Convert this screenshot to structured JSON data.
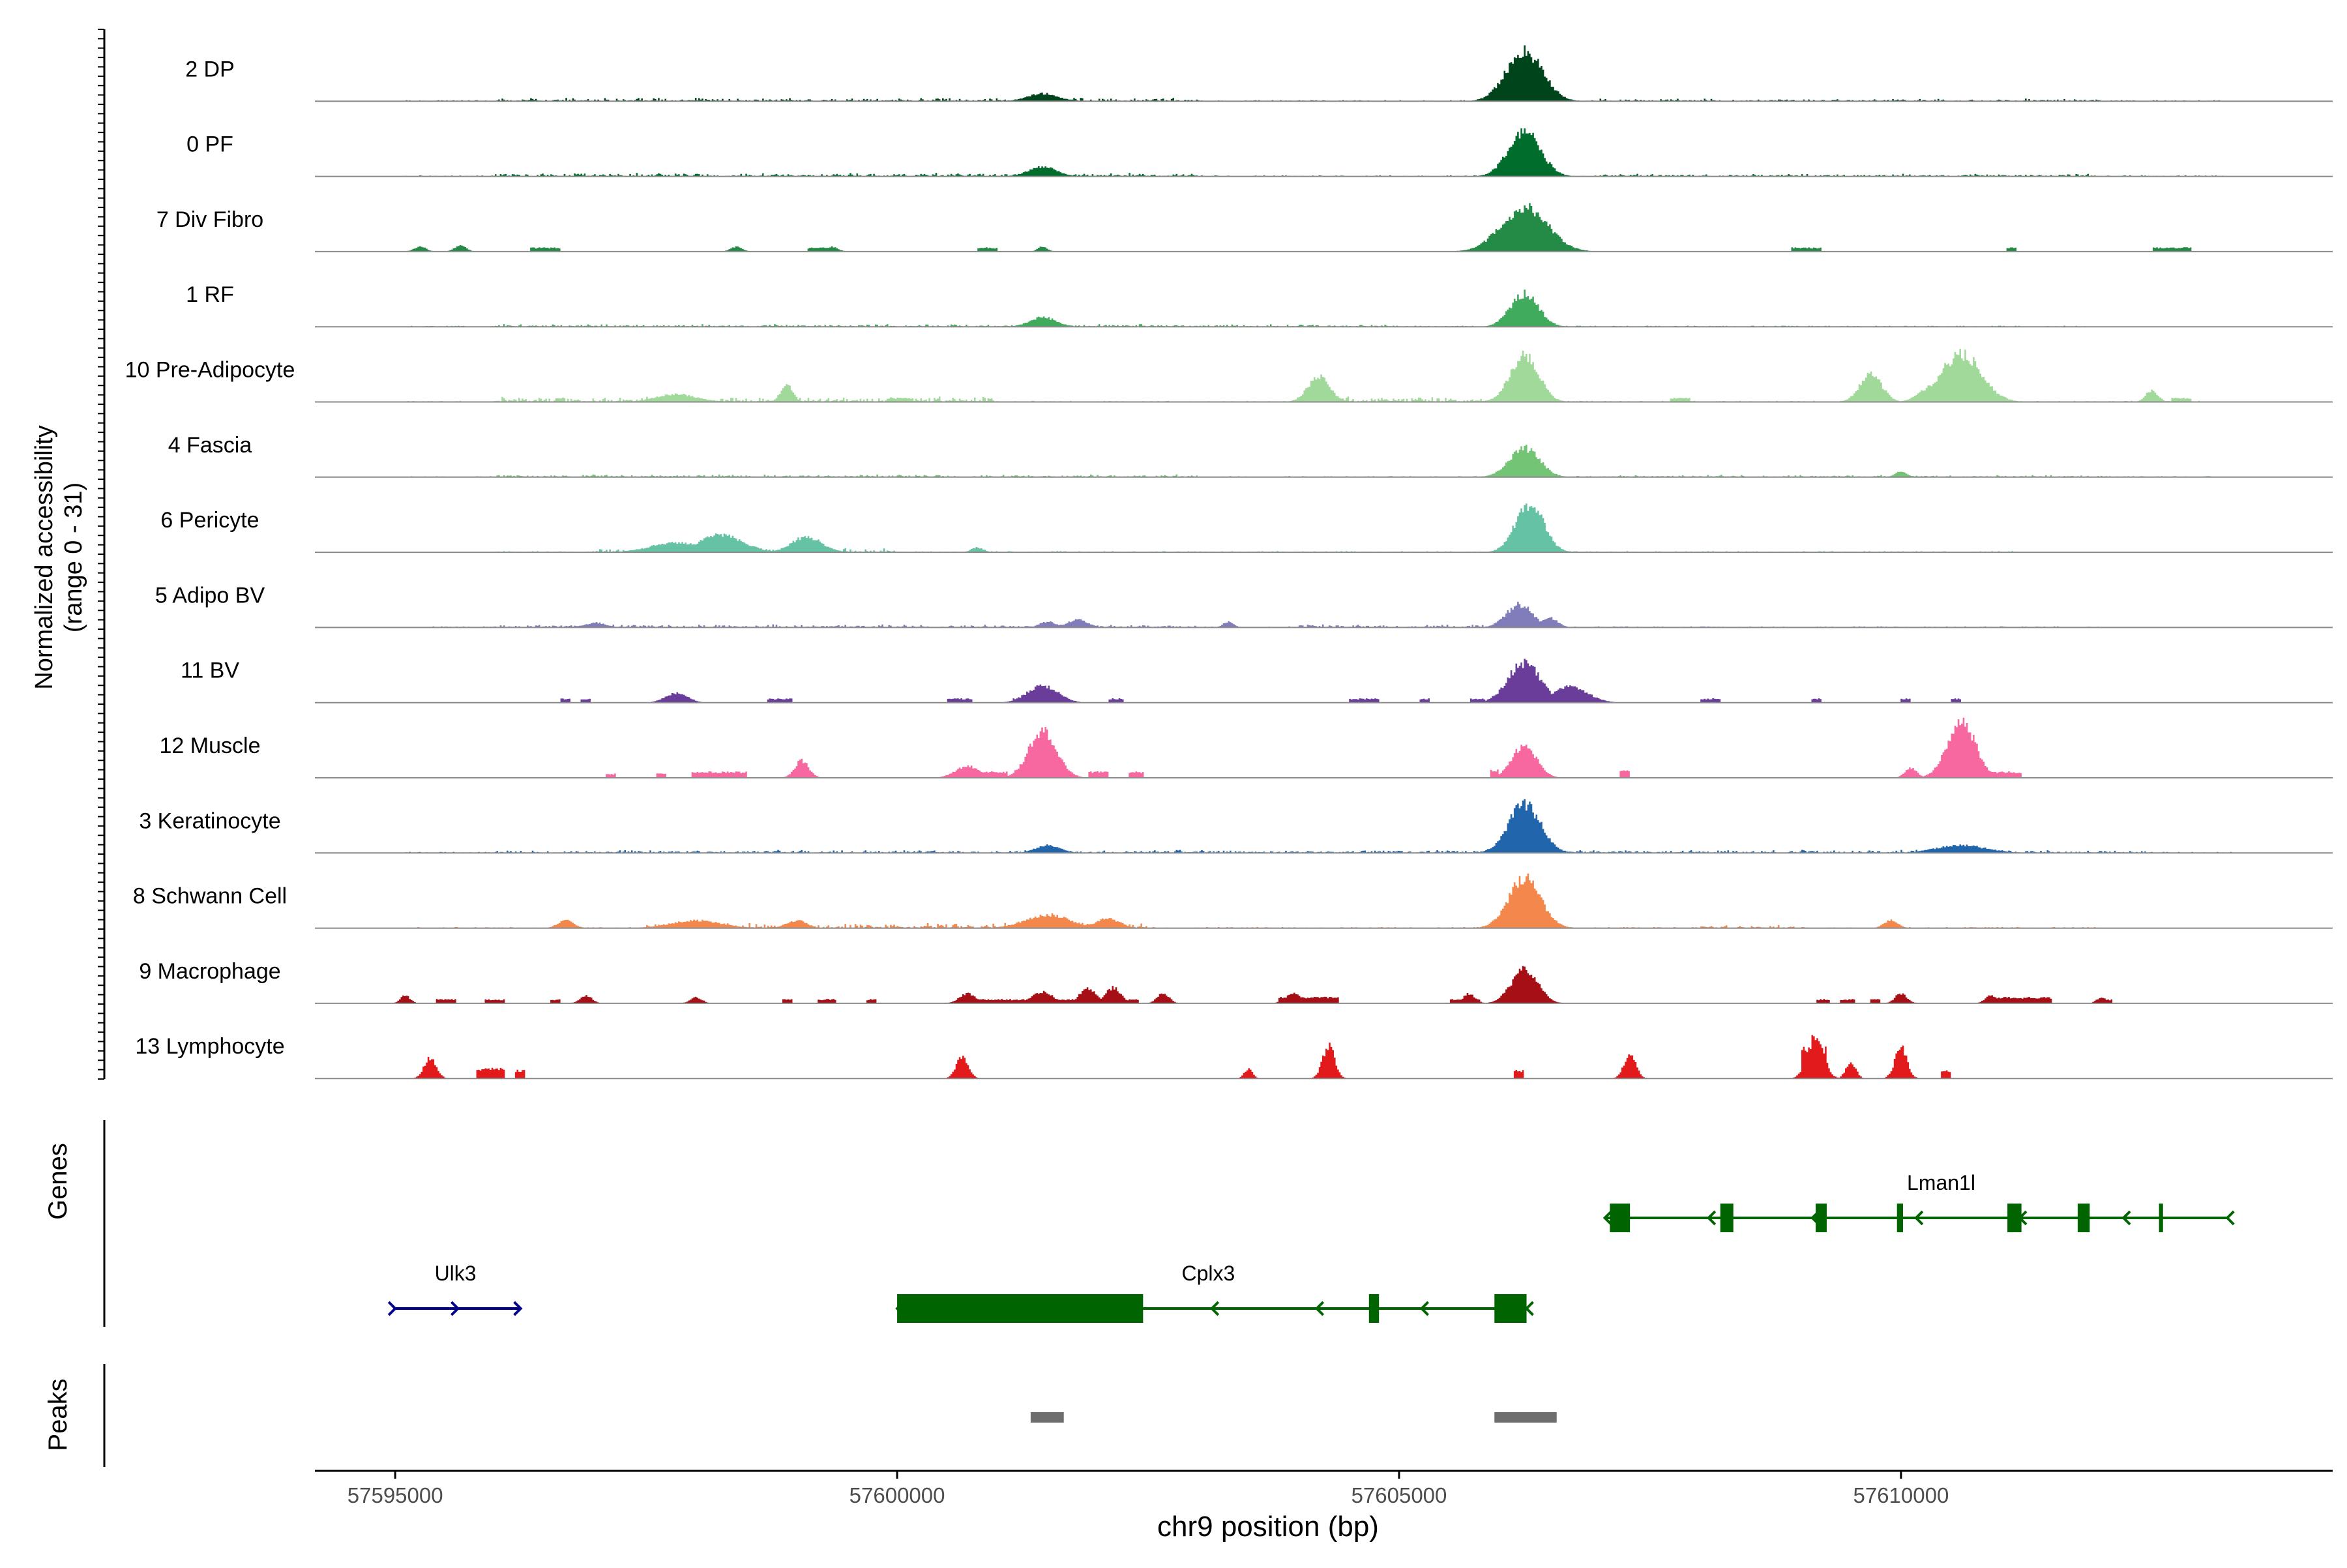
{
  "chart_data": {
    "type": "area",
    "subtype": "genome-coverage-track",
    "y_axis_label": {
      "line1": "Normalized accessibility",
      "line2": "(range 0 - 31)"
    },
    "y_range": [
      0,
      31
    ],
    "x_axis": {
      "label": "chr9 position (bp)",
      "range": [
        57594200,
        57614300
      ],
      "ticks": [
        57595000,
        57600000,
        57605000,
        57610000
      ],
      "tick_labels": [
        "57595000",
        "57600000",
        "57605000",
        "57610000"
      ]
    },
    "tracks": [
      {
        "name": "2 DP",
        "color": "#00441B",
        "range": [
          57595100,
          57613200
        ],
        "noise": [
          [
            57596000,
            57603000,
            1.2
          ],
          [
            57607000,
            57612000,
            0.8
          ]
        ],
        "peaks": [
          [
            57601450,
            4,
            150
          ],
          [
            57606250,
            26,
            180
          ]
        ],
        "blocks": []
      },
      {
        "name": "0 PF",
        "color": "#006D2C",
        "range": [
          57595100,
          57613300
        ],
        "noise": [
          [
            57596000,
            57603000,
            1.2
          ],
          [
            57607000,
            57612000,
            0.8
          ]
        ],
        "peaks": [
          [
            57601450,
            5,
            140
          ],
          [
            57606250,
            23,
            160
          ]
        ],
        "blocks": []
      },
      {
        "name": "7 Div Fibro",
        "color": "#238B45",
        "range": null,
        "noise": [],
        "peaks": [
          [
            57595250,
            2.5,
            60
          ],
          [
            57595650,
            3,
            60
          ],
          [
            57596500,
            2,
            60
          ],
          [
            57598400,
            2.5,
            60
          ],
          [
            57599350,
            2.5,
            60
          ],
          [
            57601450,
            2.5,
            50
          ],
          [
            57606250,
            23,
            230
          ]
        ],
        "blocks": [
          [
            57595200,
            57595300,
            2
          ],
          [
            57596350,
            57596650,
            2
          ],
          [
            57599100,
            57599400,
            2
          ],
          [
            57600800,
            57601000,
            2
          ],
          [
            57608900,
            57609200,
            2
          ],
          [
            57611050,
            57611150,
            2
          ],
          [
            57612500,
            57612900,
            2
          ]
        ]
      },
      {
        "name": "1 RF",
        "color": "#41AB5D",
        "range": [
          57595100,
          57612000
        ],
        "noise": [
          [
            57596000,
            57605000,
            0.8
          ]
        ],
        "peaks": [
          [
            57601450,
            5,
            130
          ],
          [
            57606250,
            17,
            140
          ]
        ],
        "blocks": []
      },
      {
        "name": "10 Pre-Adipocyte",
        "color": "#A1D99B",
        "range": [
          57595100,
          57613000
        ],
        "noise": [
          [
            57596000,
            57601000,
            2
          ],
          [
            57604000,
            57606000,
            2
          ]
        ],
        "peaks": [
          [
            57597800,
            4,
            200
          ],
          [
            57598900,
            9,
            60
          ],
          [
            57604200,
            13,
            110
          ],
          [
            57606250,
            24,
            140
          ],
          [
            57609700,
            14,
            110
          ],
          [
            57610600,
            25,
            200
          ],
          [
            57610300,
            8,
            120
          ],
          [
            57612500,
            6,
            60
          ]
        ],
        "blocks": [
          [
            57596600,
            57596700,
            2
          ],
          [
            57599900,
            57600150,
            2
          ],
          [
            57607700,
            57607900,
            2
          ],
          [
            57612700,
            57612900,
            2
          ]
        ]
      },
      {
        "name": "4 Fascia",
        "color": "#74C476",
        "range": [
          57595100,
          57613200
        ],
        "noise": [
          [
            57596000,
            57603000,
            0.8
          ],
          [
            57607000,
            57612000,
            0.6
          ]
        ],
        "peaks": [
          [
            57606250,
            15,
            150
          ],
          [
            57610000,
            3,
            60
          ]
        ],
        "blocks": []
      },
      {
        "name": "6 Pericyte",
        "color": "#66C2A4",
        "range": [
          57596000,
          57611200
        ],
        "noise": [
          [
            57597000,
            57600000,
            1.5
          ]
        ],
        "peaks": [
          [
            57597800,
            5,
            250
          ],
          [
            57598250,
            9,
            220
          ],
          [
            57599100,
            8,
            150
          ],
          [
            57600800,
            2.5,
            60
          ],
          [
            57606300,
            25,
            140
          ]
        ],
        "blocks": []
      },
      {
        "name": "5 Adipo BV",
        "color": "#807DBA",
        "range": [
          57595200,
          57612000
        ],
        "noise": [
          [
            57596000,
            57603000,
            1
          ],
          [
            57604000,
            57606000,
            1
          ]
        ],
        "peaks": [
          [
            57597000,
            2.5,
            100
          ],
          [
            57601500,
            3,
            80
          ],
          [
            57601800,
            4,
            100
          ],
          [
            57603300,
            3,
            50
          ],
          [
            57606200,
            12,
            130
          ],
          [
            57606500,
            5,
            80
          ]
        ],
        "blocks": []
      },
      {
        "name": "11 BV",
        "color": "#6A3D9A",
        "range": null,
        "noise": [],
        "peaks": [
          [
            57597800,
            5,
            110
          ],
          [
            57601450,
            9,
            150
          ],
          [
            57606250,
            21,
            160
          ],
          [
            57606700,
            8,
            180
          ]
        ],
        "blocks": [
          [
            57596650,
            57596750,
            2
          ],
          [
            57596850,
            57596950,
            2
          ],
          [
            57598700,
            57598950,
            2
          ],
          [
            57600500,
            57600750,
            2
          ],
          [
            57601150,
            57601350,
            2
          ],
          [
            57602100,
            57602250,
            2
          ],
          [
            57604500,
            57604800,
            2
          ],
          [
            57605200,
            57605300,
            2
          ],
          [
            57605700,
            57605850,
            2
          ],
          [
            57608000,
            57608200,
            2
          ],
          [
            57609100,
            57609200,
            2
          ],
          [
            57610000,
            57610100,
            2
          ],
          [
            57610500,
            57610600,
            2
          ]
        ]
      },
      {
        "name": "12 Muscle",
        "color": "#F768A1",
        "range": null,
        "noise": [],
        "peaks": [
          [
            57599050,
            9,
            70
          ],
          [
            57600700,
            6,
            120
          ],
          [
            57601450,
            24,
            140
          ],
          [
            57606250,
            17,
            120
          ],
          [
            57610600,
            30,
            140
          ],
          [
            57610100,
            5,
            60
          ]
        ],
        "blocks": [
          [
            57597100,
            57597200,
            2
          ],
          [
            57597600,
            57597700,
            2
          ],
          [
            57597950,
            57598500,
            3
          ],
          [
            57600600,
            57601100,
            3
          ],
          [
            57601900,
            57602100,
            3
          ],
          [
            57602300,
            57602450,
            3
          ],
          [
            57605900,
            57606000,
            4
          ],
          [
            57607200,
            57607300,
            4
          ],
          [
            57610800,
            57611200,
            3
          ]
        ]
      },
      {
        "name": "3 Keratinocyte",
        "color": "#2166AC",
        "range": [
          57595100,
          57613300
        ],
        "noise": [
          [
            57596000,
            57612500,
            1
          ]
        ],
        "peaks": [
          [
            57601500,
            4,
            120
          ],
          [
            57606250,
            25,
            160
          ],
          [
            57610600,
            4,
            250
          ]
        ],
        "blocks": []
      },
      {
        "name": "8 Schwann Cell",
        "color": "#F4874B",
        "range": [
          57595100,
          57612000
        ],
        "noise": [
          [
            57597500,
            57602500,
            2
          ],
          [
            57608000,
            57609000,
            1
          ]
        ],
        "peaks": [
          [
            57596700,
            4,
            80
          ],
          [
            57598000,
            4,
            250
          ],
          [
            57599000,
            4,
            100
          ],
          [
            57601500,
            7,
            220
          ],
          [
            57602100,
            5,
            120
          ],
          [
            57606250,
            26,
            160
          ],
          [
            57609900,
            4,
            70
          ]
        ],
        "blocks": []
      },
      {
        "name": "9 Macrophage",
        "color": "#A50F15",
        "range": null,
        "noise": [],
        "peaks": [
          [
            57595100,
            4,
            50
          ],
          [
            57596900,
            4,
            60
          ],
          [
            57598000,
            3,
            60
          ],
          [
            57600700,
            5,
            80
          ],
          [
            57601450,
            6,
            100
          ],
          [
            57601900,
            8,
            80
          ],
          [
            57602150,
            8,
            80
          ],
          [
            57602650,
            5,
            60
          ],
          [
            57603950,
            5,
            80
          ],
          [
            57605700,
            5,
            60
          ],
          [
            57606250,
            18,
            130
          ],
          [
            57610000,
            5,
            60
          ],
          [
            57610900,
            4,
            60
          ],
          [
            57612000,
            3,
            50
          ]
        ],
        "blocks": [
          [
            57595400,
            57595600,
            2
          ],
          [
            57595900,
            57596100,
            2
          ],
          [
            57596550,
            57596650,
            2
          ],
          [
            57598850,
            57598950,
            2
          ],
          [
            57599200,
            57599400,
            2
          ],
          [
            57599700,
            57599800,
            2
          ],
          [
            57600700,
            57601300,
            2
          ],
          [
            57601500,
            57602000,
            2
          ],
          [
            57602300,
            57602400,
            2
          ],
          [
            57603800,
            57604400,
            3
          ],
          [
            57605500,
            57605800,
            2
          ],
          [
            57609150,
            57609300,
            2
          ],
          [
            57609400,
            57609550,
            2
          ],
          [
            57609700,
            57609800,
            2
          ],
          [
            57610900,
            57611500,
            3
          ],
          [
            57611950,
            57612100,
            2
          ]
        ]
      },
      {
        "name": "13 Lymphocyte",
        "color": "#E31A1C",
        "range": null,
        "noise": [],
        "peaks": [
          [
            57595350,
            11,
            60
          ],
          [
            57600650,
            11,
            60
          ],
          [
            57603500,
            5,
            40
          ],
          [
            57604300,
            17,
            60
          ],
          [
            57607300,
            12,
            60
          ],
          [
            57609150,
            22,
            80
          ],
          [
            57609500,
            8,
            50
          ],
          [
            57610000,
            16,
            60
          ]
        ],
        "blocks": [
          [
            57595800,
            57596100,
            5
          ],
          [
            57596200,
            57596300,
            4
          ],
          [
            57606150,
            57606250,
            4
          ],
          [
            57609000,
            57609250,
            15
          ],
          [
            57610400,
            57610500,
            4
          ]
        ]
      }
    ],
    "genes": [
      {
        "name": "Ulk3",
        "color": "#00008B",
        "strand": "+",
        "start": 57595000,
        "end": 57596250,
        "label_pos": 57595600,
        "row": 2,
        "exons": []
      },
      {
        "name": "Cplx3",
        "color": "#006400",
        "strand": "-",
        "start": 57600000,
        "end": 57606270,
        "label_pos": 57603100,
        "row": 2,
        "exons": [
          [
            57600000,
            57602450,
            "thick"
          ],
          [
            57604700,
            57604800,
            "thick"
          ],
          [
            57605950,
            57606270,
            "thick"
          ]
        ]
      },
      {
        "name": "Lman1l",
        "color": "#006400",
        "strand": "-",
        "start": 57607050,
        "end": 57613250,
        "label_pos": 57610400,
        "row": 1,
        "exons": [
          [
            57607100,
            57607300,
            "thick"
          ],
          [
            57608200,
            57608330,
            "thick"
          ],
          [
            57609150,
            57609260,
            "thick"
          ],
          [
            57609960,
            57610020,
            "thick"
          ],
          [
            57611060,
            57611200,
            "thick"
          ],
          [
            57611760,
            57611880,
            "thick"
          ],
          [
            57612570,
            57612610,
            "thick"
          ]
        ]
      }
    ],
    "peaks_track": [
      [
        57601330,
        57601660
      ],
      [
        57605950,
        57606570
      ]
    ],
    "panel_labels": {
      "genes": "Genes",
      "peaks": "Peaks"
    }
  }
}
